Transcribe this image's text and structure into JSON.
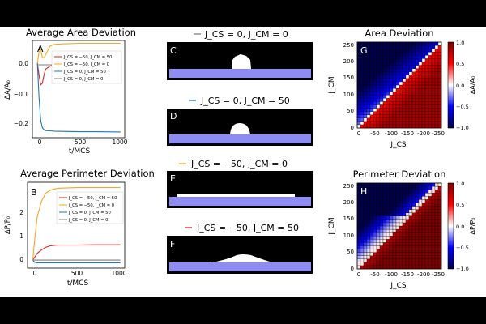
{
  "panels": {
    "A": {
      "letter": "A",
      "title": "Average Area Deviation",
      "xlabel": "t/MCS",
      "ylabel": "ΔA/A₀",
      "xticks": [
        "0",
        "500",
        "1000"
      ],
      "yticks": [
        "0.0",
        "−0.1",
        "−0.2"
      ],
      "legend": [
        "J_CS = −50, J_CM = 50",
        "J_CS = −50, J_CM = 0",
        "J_CS = 0, J_CM = 50",
        "J_CS = 0, J_CM = 0"
      ]
    },
    "B": {
      "letter": "B",
      "title": "Average Perimeter Deviation",
      "xlabel": "t/MCS",
      "ylabel": "ΔP/P₀",
      "xticks": [
        "0",
        "500",
        "1000"
      ],
      "yticks": [
        "0",
        "1",
        "2"
      ],
      "legend": [
        "J_CS = −50, J_CM = 50",
        "J_CS = −50, J_CM = 0",
        "J_CS = 0, J_CM = 50",
        "J_CS = 0, J_CM = 0"
      ]
    },
    "C": {
      "letter": "C",
      "title": "J_CS = 0, J_CM = 0"
    },
    "D": {
      "letter": "D",
      "title": "J_CS = 0, J_CM = 50"
    },
    "E": {
      "letter": "E",
      "title": "J_CS = −50, J_CM = 0"
    },
    "F": {
      "letter": "F",
      "title": "J_CS = −50, J_CM = 50"
    },
    "G": {
      "letter": "G",
      "title": "Area Deviation",
      "xlabel": "J_CS",
      "ylabel": "J_CM",
      "cbar_label": "ΔA/A₀",
      "xticks": [
        "0",
        "-50",
        "-100",
        "-150",
        "-200",
        "-250"
      ],
      "yticks": [
        "0",
        "50",
        "100",
        "150",
        "200",
        "250"
      ],
      "cbar_ticks": [
        "1.0",
        "0.5",
        "0.0",
        "−0.5",
        "−1.0"
      ]
    },
    "H": {
      "letter": "H",
      "title": "Perimeter Deviation",
      "xlabel": "J_CS",
      "ylabel": "J_CM",
      "cbar_label": "ΔP/P₀",
      "xticks": [
        "0",
        "-50",
        "-100",
        "-150",
        "-200",
        "-250"
      ],
      "yticks": [
        "0",
        "50",
        "100",
        "150",
        "200",
        "250"
      ],
      "cbar_ticks": [
        "1.0",
        "0.5",
        "0.0",
        "−0.5",
        "−1.0"
      ]
    }
  },
  "chart_data": [
    {
      "type": "line",
      "panel": "A",
      "title": "Average Area Deviation",
      "xlabel": "t/MCS",
      "ylabel": "ΔA/A₀",
      "xlim": [
        -60,
        1050
      ],
      "ylim": [
        -0.26,
        0.08
      ],
      "legend_position": "center-right",
      "series": [
        {
          "name": "J_CS = −50, J_CM = 50",
          "color": "#d62728",
          "x": [
            0,
            20,
            40,
            60,
            80,
            100,
            150,
            200,
            300,
            500,
            700,
            1000
          ],
          "y": [
            0.0,
            -0.04,
            -0.075,
            -0.07,
            -0.04,
            -0.02,
            -0.01,
            -0.005,
            -0.003,
            -0.003,
            -0.002,
            -0.002
          ]
        },
        {
          "name": "J_CS = −50, J_CM = 0",
          "color": "#f5a623",
          "x": [
            0,
            20,
            40,
            60,
            80,
            100,
            150,
            200,
            300,
            500,
            700,
            1000
          ],
          "y": [
            0.0,
            0.04,
            0.05,
            0.02,
            0.02,
            0.03,
            0.06,
            0.066,
            0.068,
            0.07,
            0.07,
            0.07
          ]
        },
        {
          "name": "J_CS = 0, J_CM = 50",
          "color": "#1f77b4",
          "x": [
            0,
            20,
            40,
            60,
            80,
            100,
            150,
            200,
            300,
            500,
            700,
            1000
          ],
          "y": [
            0.0,
            -0.12,
            -0.2,
            -0.225,
            -0.232,
            -0.235,
            -0.236,
            -0.237,
            -0.238,
            -0.239,
            -0.239,
            -0.24
          ]
        },
        {
          "name": "J_CS = 0, J_CM = 0",
          "color": "#7f7f7f",
          "x": [
            0,
            200,
            400,
            600,
            800,
            1000
          ],
          "y": [
            -0.005,
            -0.005,
            -0.005,
            -0.005,
            -0.005,
            -0.005
          ]
        }
      ]
    },
    {
      "type": "line",
      "panel": "B",
      "title": "Average Perimeter Deviation",
      "xlabel": "t/MCS",
      "ylabel": "ΔP/P₀",
      "xlim": [
        -60,
        1050
      ],
      "ylim": [
        -0.3,
        2.9
      ],
      "legend_position": "center-right",
      "series": [
        {
          "name": "J_CS = −50, J_CM = 50",
          "color": "#d62728",
          "x": [
            0,
            20,
            50,
            100,
            150,
            200,
            250,
            300,
            500,
            700,
            1000
          ],
          "y": [
            0.0,
            0.1,
            0.25,
            0.38,
            0.48,
            0.53,
            0.55,
            0.56,
            0.56,
            0.57,
            0.57
          ]
        },
        {
          "name": "J_CS = −50, J_CM = 0",
          "color": "#f5a623",
          "x": [
            0,
            20,
            50,
            100,
            150,
            200,
            250,
            300,
            500,
            700,
            1000
          ],
          "y": [
            0.0,
            0.7,
            1.6,
            2.2,
            2.5,
            2.6,
            2.65,
            2.68,
            2.7,
            2.7,
            2.7
          ]
        },
        {
          "name": "J_CS = 0, J_CM = 50",
          "color": "#1f77b4",
          "x": [
            0,
            20,
            50,
            100,
            200,
            500,
            1000
          ],
          "y": [
            0.0,
            -0.08,
            -0.1,
            -0.1,
            -0.1,
            -0.1,
            -0.1
          ]
        },
        {
          "name": "J_CS = 0, J_CM = 0",
          "color": "#7f7f7f",
          "x": [
            0,
            500,
            1000
          ],
          "y": [
            0.0,
            0.0,
            0.0
          ]
        }
      ]
    },
    {
      "type": "heatmap",
      "panel": "G",
      "title": "Area Deviation",
      "xlabel": "J_CS",
      "ylabel": "J_CM",
      "colormap": "seismic",
      "cbar_range": [
        -1.0,
        1.0
      ],
      "x_range": [
        0,
        -250
      ],
      "y_range": [
        0,
        250
      ],
      "grid_size": 26,
      "pattern": "positive (red) where |J_CS| > J_CM, negative (blue) where J_CM > |J_CS|, strongest blue top-left"
    },
    {
      "type": "heatmap",
      "panel": "H",
      "title": "Perimeter Deviation",
      "xlabel": "J_CS",
      "ylabel": "J_CM",
      "colormap": "seismic",
      "cbar_range": [
        -1.0,
        1.0
      ],
      "x_range": [
        0,
        -250
      ],
      "y_range": [
        0,
        250
      ],
      "grid_size": 26,
      "pattern": "saturated red where |J_CS| > J_CM, blue only in top-left corner"
    }
  ]
}
